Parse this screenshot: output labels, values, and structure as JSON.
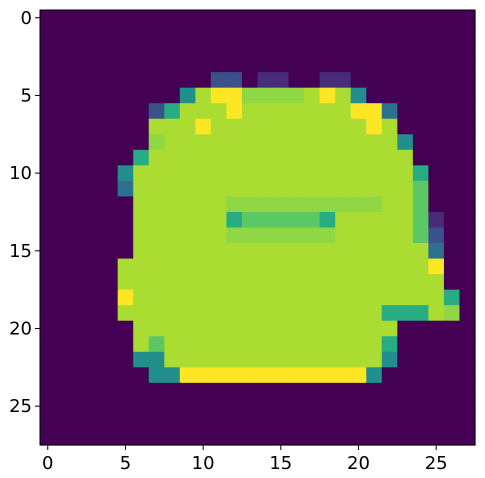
{
  "chart_data": {
    "type": "heatmap",
    "title": "",
    "xlabel": "",
    "ylabel": "",
    "colormap": "viridis",
    "value_range": [
      0,
      1
    ],
    "grid": false,
    "xlim": [
      -0.5,
      27.5
    ],
    "ylim": [
      27.5,
      -0.5
    ],
    "x_ticks": [
      0,
      5,
      10,
      15,
      20,
      25
    ],
    "y_ticks": [
      0,
      5,
      10,
      15,
      20,
      25
    ],
    "x_tick_labels": [
      "0",
      "5",
      "10",
      "15",
      "20",
      "25"
    ],
    "y_tick_labels": [
      "0",
      "5",
      "10",
      "15",
      "20",
      "25"
    ],
    "rows": [
      "0000000000000000000000000000",
      "0000000000000000000000000000",
      "0000000000000000000000000000",
      "0000000000000000000000000000",
      "0000000000022011001100000000",
      "0000000004899777789840000000",
      "0000000258889888888899300000",
      "0000000888988888888889800000",
      "0000000788888888888888840000",
      "0000005888888888888888880000",
      "0000048888888888888888885000",
      "0000038888888888888888886000",
      "0000008888887777777777886000",
      "0000008888885666665888886100",
      "0000008888887777777888886200",
      "0000008888888888888888888300",
      "0000088888888888888888888900",
      "0000088888888888888888888800",
      "0000098888888888888888888850",
      "0000088888888888888888555870",
      "0000008888888888888888800000",
      "0000008688888888888888500000",
      "0000004488888888888888400000",
      "0000000449999999999994000000",
      "0000000000000000000000000000",
      "0000000000000000000000000000",
      "0000000000000000000000000000",
      "0000000000000000000000000000"
    ]
  }
}
